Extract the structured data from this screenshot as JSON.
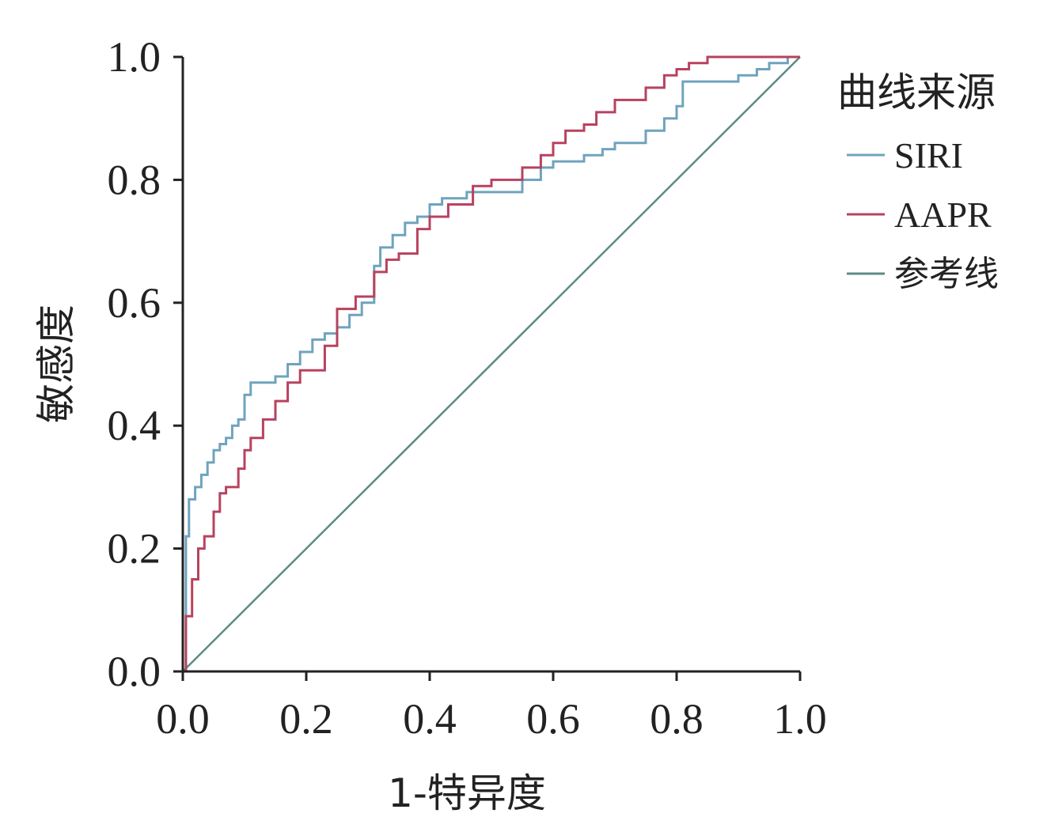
{
  "chart_data": {
    "type": "line",
    "title": "",
    "xlabel": "1-特异度",
    "ylabel": "敏感度",
    "xlim": [
      0,
      1
    ],
    "ylim": [
      0,
      1
    ],
    "x_ticks": [
      "0.0",
      "0.2",
      "0.4",
      "0.6",
      "0.8",
      "1.0"
    ],
    "y_ticks": [
      "0.0",
      "0.2",
      "0.4",
      "0.6",
      "0.8",
      "1.0"
    ],
    "legend_title": "曲线来源",
    "legend_position": "right",
    "series": [
      {
        "name": "SIRI",
        "color": "#6fa3bd",
        "step": true,
        "x": [
          0.0,
          0.005,
          0.01,
          0.02,
          0.03,
          0.04,
          0.05,
          0.06,
          0.07,
          0.08,
          0.09,
          0.1,
          0.11,
          0.15,
          0.17,
          0.19,
          0.21,
          0.23,
          0.25,
          0.27,
          0.29,
          0.31,
          0.32,
          0.34,
          0.36,
          0.38,
          0.4,
          0.42,
          0.46,
          0.5,
          0.55,
          0.58,
          0.6,
          0.65,
          0.68,
          0.7,
          0.75,
          0.78,
          0.8,
          0.81,
          0.85,
          0.9,
          0.93,
          0.95,
          0.98,
          1.0
        ],
        "y": [
          0.0,
          0.22,
          0.28,
          0.3,
          0.32,
          0.34,
          0.36,
          0.37,
          0.38,
          0.4,
          0.41,
          0.45,
          0.47,
          0.48,
          0.5,
          0.52,
          0.54,
          0.55,
          0.56,
          0.58,
          0.6,
          0.66,
          0.69,
          0.71,
          0.73,
          0.74,
          0.76,
          0.77,
          0.78,
          0.78,
          0.8,
          0.82,
          0.83,
          0.84,
          0.85,
          0.86,
          0.88,
          0.9,
          0.92,
          0.96,
          0.96,
          0.97,
          0.98,
          0.99,
          1.0,
          1.0
        ]
      },
      {
        "name": "AAPR",
        "color": "#b8425f",
        "step": true,
        "x": [
          0.0,
          0.005,
          0.015,
          0.025,
          0.035,
          0.05,
          0.06,
          0.07,
          0.09,
          0.1,
          0.11,
          0.13,
          0.15,
          0.17,
          0.19,
          0.23,
          0.25,
          0.28,
          0.31,
          0.33,
          0.35,
          0.38,
          0.4,
          0.43,
          0.47,
          0.5,
          0.55,
          0.58,
          0.6,
          0.62,
          0.65,
          0.67,
          0.7,
          0.75,
          0.78,
          0.8,
          0.82,
          0.85,
          0.9,
          0.92,
          1.0
        ],
        "y": [
          0.0,
          0.09,
          0.15,
          0.2,
          0.22,
          0.26,
          0.29,
          0.3,
          0.33,
          0.36,
          0.38,
          0.41,
          0.44,
          0.47,
          0.49,
          0.53,
          0.59,
          0.61,
          0.65,
          0.67,
          0.68,
          0.72,
          0.74,
          0.76,
          0.79,
          0.8,
          0.82,
          0.84,
          0.86,
          0.88,
          0.89,
          0.91,
          0.93,
          0.95,
          0.97,
          0.98,
          0.99,
          1.0,
          1.0,
          1.0,
          1.0
        ]
      },
      {
        "name": "参考线",
        "color": "#5e8a86",
        "step": false,
        "x": [
          0,
          1
        ],
        "y": [
          0,
          1
        ]
      }
    ]
  }
}
